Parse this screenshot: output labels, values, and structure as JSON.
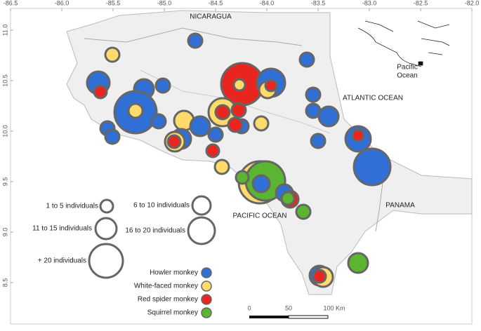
{
  "map": {
    "xticks": [
      -86.5,
      {
        "value": -86,
        "label": "-86.0"
      },
      -85.5,
      {
        "value": -85,
        "label": "-85.0"
      },
      -84.5,
      {
        "value": -84,
        "label": "-84.0"
      },
      -83.5,
      {
        "value": -83,
        "label": "-83.0"
      },
      -82.5,
      {
        "value": -82,
        "label": "-82.0"
      }
    ],
    "yticks": [
      8.5,
      {
        "value": 9,
        "label": "9.0"
      },
      9.5,
      {
        "value": 10,
        "label": "10.0"
      },
      10.5,
      {
        "value": 11,
        "label": "11.0"
      }
    ],
    "labels": {
      "nicaragua": "NICARAGUA",
      "atlantic": "ATLANTIC OCEAN",
      "panama": "PANAMA",
      "pacific": "PACIFIC OCEAN"
    }
  },
  "legend": {
    "sizes": [
      "1 to 5 individuals",
      "6 to 10 individuals",
      "11 to 15 individuals",
      "16 to 20 individuals",
      "+ 20 individuals"
    ],
    "species": [
      {
        "name": "Howler monkey",
        "color": "#2f6fd6"
      },
      {
        "name": "White-faced monkey",
        "color": "#fedb6b"
      },
      {
        "name": "Red spider monkey",
        "color": "#e8261f"
      },
      {
        "name": "Squirrel monkey",
        "color": "#5cb531"
      }
    ]
  },
  "scale_bar": {
    "labels": [
      "0",
      "50",
      "100 Km"
    ]
  },
  "inset": {
    "label": [
      "Pacific",
      "Ocean"
    ]
  }
}
